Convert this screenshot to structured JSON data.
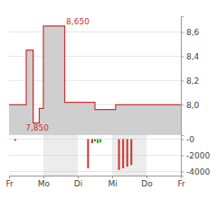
{
  "chart_data": [
    {
      "type": "area",
      "x": [
        0,
        0.5,
        0.5,
        0.7,
        0.7,
        0.88,
        0.88,
        1.0,
        1.0,
        1.62,
        1.62,
        2.5,
        2.5,
        3.1,
        3.1,
        3.28,
        3.28,
        5.0
      ],
      "series": [
        {
          "values": [
            8.0,
            8.0,
            8.45,
            8.45,
            7.85,
            7.85,
            7.97,
            7.97,
            8.65,
            8.65,
            8.02,
            8.02,
            7.96,
            7.96,
            8.0,
            8.0,
            8.0,
            8.0
          ],
          "color": "#cc3333"
        },
        {
          "type": "line",
          "x": [
            0.7,
            0.7
          ],
          "values": [
            7.85,
            8.45
          ],
          "color": "#cc3333"
        }
      ],
      "xlim": [
        0,
        5.0
      ],
      "ylim": [
        7.75,
        8.73
      ],
      "yticks": [
        {
          "value": 8.0,
          "label": "8,0"
        },
        {
          "value": 8.2,
          "label": "8,2"
        },
        {
          "value": 8.4,
          "label": "8,4"
        },
        {
          "value": 8.6,
          "label": "8,6"
        }
      ],
      "annotations": [
        {
          "text": "8,650",
          "x": 2.0,
          "y": 8.65
        },
        {
          "text": "7,850",
          "x": 0.82,
          "y": 7.85
        }
      ],
      "grid": true,
      "tick_labels": "y"
    },
    {
      "type": "bar",
      "x": [
        0.18,
        2.3,
        2.42,
        2.5,
        2.58,
        2.66,
        3.2,
        3.32,
        3.44,
        3.56
      ],
      "values": [
        -200,
        -3600,
        -500,
        -300,
        -500,
        -400,
        -3800,
        -3600,
        -3400,
        -3200
      ],
      "colors": [
        "#cc3333",
        "#cc3333",
        "#cc3333",
        "#22aa22",
        "#22aa22",
        "#22aa22",
        "#cc3333",
        "#cc3333",
        "#cc3333",
        "#cc3333"
      ],
      "xlim": [
        0,
        5.0
      ],
      "xticks": [
        {
          "value": 0,
          "label": "Fr"
        },
        {
          "value": 1,
          "label": "Mo"
        },
        {
          "value": 2,
          "label": "Di"
        },
        {
          "value": 3,
          "label": "Mi"
        },
        {
          "value": 4,
          "label": "Do"
        },
        {
          "value": 5,
          "label": "Fr"
        }
      ],
      "ylim": [
        -4500,
        500
      ],
      "yticks": [
        -4000,
        -2000,
        {
          "value": 0,
          "label": "-0"
        }
      ],
      "grid": true
    }
  ]
}
